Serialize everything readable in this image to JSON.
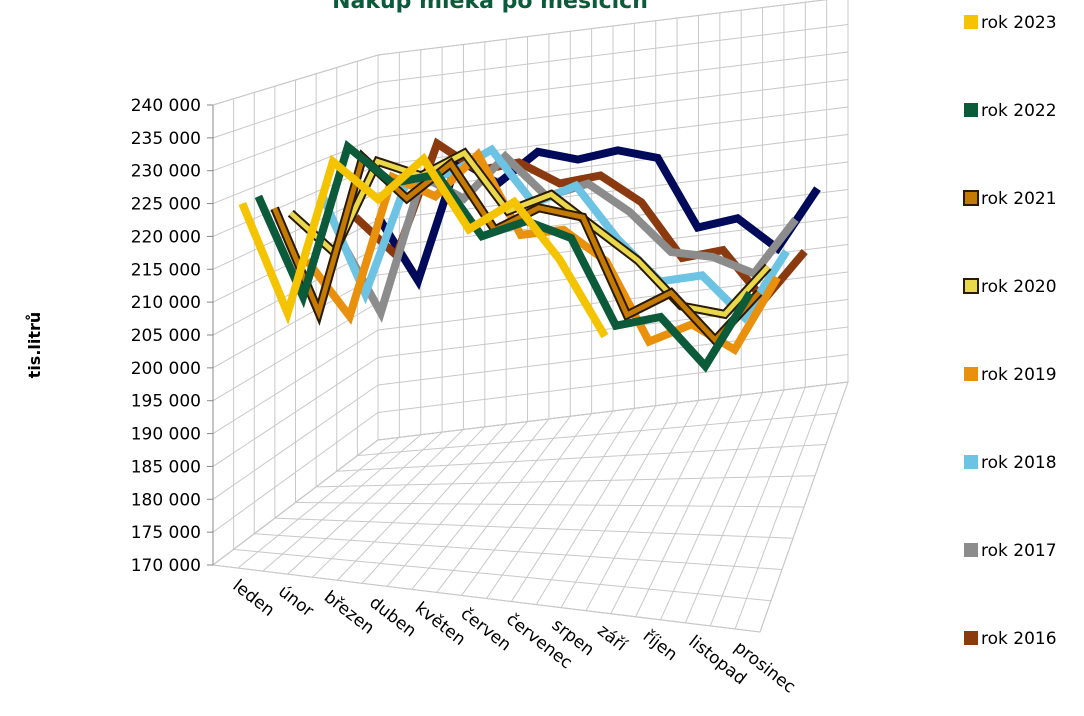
{
  "chart_data": {
    "type": "line",
    "title": "Nákup mléka po měsících",
    "ylabel": "tis.litrů",
    "xlabel": "",
    "ylim": [
      170000,
      240000
    ],
    "ytick_step": 5000,
    "ytick_labels": [
      "170 000",
      "175 000",
      "180 000",
      "185 000",
      "190 000",
      "195 000",
      "200 000",
      "205 000",
      "210 000",
      "215 000",
      "220 000",
      "225 000",
      "230 000",
      "235 000",
      "240 000"
    ],
    "categories": [
      "leden",
      "únor",
      "březen",
      "duben",
      "květen",
      "červen",
      "červenec",
      "srpen",
      "září",
      "říjen",
      "listopad",
      "prosinec"
    ],
    "legend_position": "right",
    "grid": true,
    "series": [
      {
        "name": "rok 2023",
        "color": "#f5c400",
        "outline": false,
        "values": [
          225000,
          209000,
          233000,
          228000,
          235000,
          225000,
          230000,
          222000,
          211000,
          null,
          null,
          null
        ]
      },
      {
        "name": "rok 2022",
        "color": "#0b5a3a",
        "outline": false,
        "values": [
          225000,
          210000,
          234000,
          229000,
          231000,
          222000,
          225000,
          223000,
          210000,
          212000,
          205000,
          217000
        ]
      },
      {
        "name": "rok 2021",
        "color": "#c47a00",
        "outline": true,
        "values": [
          222000,
          206000,
          231000,
          225000,
          231000,
          221000,
          225000,
          224000,
          209000,
          213000,
          206000,
          214000
        ]
      },
      {
        "name": "rok 2020",
        "color": "#e8d84a",
        "outline": true,
        "values": [
          220000,
          214000,
          229000,
          227000,
          231000,
          222000,
          225000,
          220000,
          215000,
          208000,
          207000,
          215000
        ]
      },
      {
        "name": "rok 2019",
        "color": "#e9900c",
        "outline": false,
        "values": [
          211000,
          202000,
          225000,
          222000,
          229000,
          216000,
          217000,
          212000,
          199000,
          202000,
          198000,
          210000
        ]
      },
      {
        "name": "rok 2018",
        "color": "#6cc3e3",
        "outline": false,
        "values": [
          220000,
          204000,
          223000,
          224000,
          228000,
          219000,
          222000,
          213000,
          206000,
          207000,
          200000,
          211000
        ]
      },
      {
        "name": "rok 2017",
        "color": "#8c8c8c",
        "outline": false,
        "values": [
          212000,
          199000,
          222000,
          218000,
          225000,
          218000,
          220000,
          215000,
          208000,
          207000,
          204000,
          213000
        ]
      },
      {
        "name": "rok 2016",
        "color": "#8b3a10",
        "outline": false,
        "values": [
          214000,
          207000,
          226000,
          221000,
          222000,
          218000,
          219000,
          214000,
          204000,
          205000,
          196000,
          204000
        ]
      }
    ],
    "back_series": {
      "name": "",
      "color": "#000a5a",
      "values": [
        212000,
        200000,
        221000,
        216000,
        221000,
        219000,
        220000,
        218000,
        205000,
        206000,
        200000,
        210000
      ]
    }
  }
}
